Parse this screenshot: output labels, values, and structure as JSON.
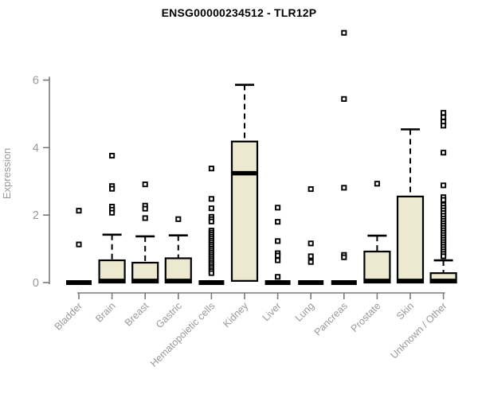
{
  "chart_data": {
    "type": "boxplot",
    "title": "ENSG00000234512 - TLR12P",
    "ylabel": "Expression",
    "yticks": [
      0,
      2,
      4,
      6
    ],
    "ylim": [
      0,
      6.1
    ],
    "legend": "none",
    "grid": false,
    "colors": {
      "box_fill": "#EDE8D0",
      "box_stroke": "#000000",
      "median": "#000000",
      "whisker": "#000000",
      "axis_line": "#7a7a7a",
      "tick_label": "#999999",
      "title": "#000000",
      "background": "#ffffff"
    },
    "categories": [
      {
        "label": "Bladder",
        "q1": 0,
        "median": 0,
        "q3": 0,
        "whisker_low": 0,
        "whisker_high": 0,
        "outliers": [
          2.13,
          1.13
        ]
      },
      {
        "label": "Brain",
        "q1": 0,
        "median": 0.05,
        "q3": 0.66,
        "whisker_low": 0,
        "whisker_high": 1.42,
        "outliers": [
          3.76,
          2.86,
          2.78,
          2.25,
          2.16,
          2.07
        ]
      },
      {
        "label": "Breast",
        "q1": 0,
        "median": 0.05,
        "q3": 0.59,
        "whisker_low": 0,
        "whisker_high": 1.37,
        "outliers": [
          2.91,
          2.28,
          2.19,
          1.91
        ]
      },
      {
        "label": "Gastric",
        "q1": 0,
        "median": 0.05,
        "q3": 0.72,
        "whisker_low": 0,
        "whisker_high": 1.4,
        "outliers": [
          1.88
        ]
      },
      {
        "label": "Hematopoietic cells",
        "q1": 0,
        "median": 0,
        "q3": 0,
        "whisker_low": 0,
        "whisker_high": 0,
        "outliers": [
          3.38,
          2.48,
          2.2,
          1.95,
          1.88,
          1.81,
          1.54,
          1.48,
          1.42,
          1.36,
          1.3,
          1.24,
          1.18,
          1.12,
          1.06,
          1.0,
          0.94,
          0.88,
          0.82,
          0.76,
          0.7,
          0.64,
          0.58,
          0.52,
          0.46,
          0.4,
          0.34,
          0.28
        ]
      },
      {
        "label": "Kidney",
        "q1": 0.05,
        "median": 3.24,
        "q3": 4.18,
        "whisker_low": 0.05,
        "whisker_high": 5.86,
        "outliers": []
      },
      {
        "label": "Liver",
        "q1": 0,
        "median": 0,
        "q3": 0,
        "whisker_low": 0,
        "whisker_high": 0,
        "outliers": [
          2.22,
          1.8,
          1.23,
          0.87,
          0.8,
          0.66,
          0.17
        ]
      },
      {
        "label": "Lung",
        "q1": 0,
        "median": 0,
        "q3": 0,
        "whisker_low": 0,
        "whisker_high": 0,
        "outliers": [
          2.77,
          1.16,
          0.78,
          0.61
        ]
      },
      {
        "label": "Pancreas",
        "q1": 0,
        "median": 0,
        "q3": 0,
        "whisker_low": 0,
        "whisker_high": 0,
        "outliers": [
          7.4,
          5.44,
          2.81,
          0.82,
          0.75
        ]
      },
      {
        "label": "Prostate",
        "q1": 0,
        "median": 0.05,
        "q3": 0.92,
        "whisker_low": 0,
        "whisker_high": 1.39,
        "outliers": [
          2.93
        ]
      },
      {
        "label": "Skin",
        "q1": 0,
        "median": 0.05,
        "q3": 2.55,
        "whisker_low": 0,
        "whisker_high": 4.54,
        "outliers": []
      },
      {
        "label": "Unknown / Other",
        "q1": 0,
        "median": 0.05,
        "q3": 0.28,
        "whisker_low": 0,
        "whisker_high": 0.66,
        "outliers": [
          5.03,
          4.9,
          4.77,
          4.65,
          3.85,
          2.88,
          2.53,
          2.45,
          2.3,
          2.22,
          2.14,
          2.06,
          1.98,
          1.9,
          1.83,
          1.76,
          1.69,
          1.62,
          1.55,
          1.48,
          1.41,
          1.34,
          1.27,
          1.2,
          1.13,
          1.06,
          0.99,
          0.92,
          0.85,
          0.78
        ]
      }
    ]
  }
}
